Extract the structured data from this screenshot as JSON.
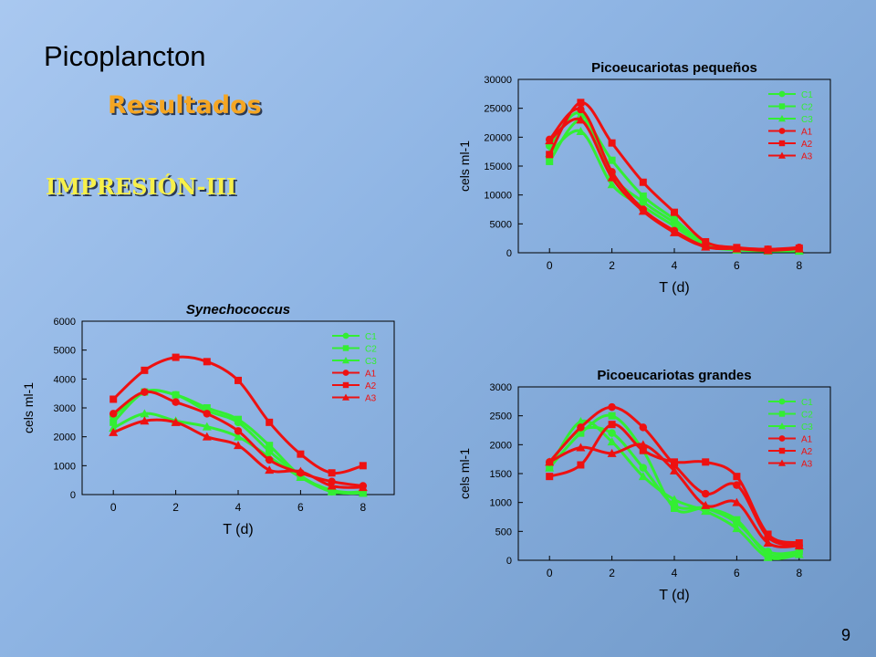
{
  "slide": {
    "title": "Picoplancton",
    "subtitle": "Resultados",
    "heading": "IMPRESIÓN-III",
    "page_number": "9"
  },
  "colors": {
    "control": "#33ee33",
    "treatment": "#ee1111"
  },
  "chart_data": [
    {
      "type": "line",
      "title": "Picoeucariotas pequeños",
      "title_style": "bold",
      "xlabel": "T (d)",
      "ylabel": "cels ml-1",
      "xlim": [
        -1,
        9
      ],
      "xticks": [
        0,
        2,
        4,
        6,
        8
      ],
      "ylim": [
        0,
        30000
      ],
      "yticks": [
        0,
        5000,
        10000,
        15000,
        20000,
        25000,
        30000
      ],
      "legend_position": "top-right",
      "x": [
        0,
        1,
        2,
        3,
        4,
        5,
        6,
        7,
        8
      ],
      "series": [
        {
          "name": "C1",
          "marker": "circle",
          "color": "#33ee33",
          "values": [
            18500,
            24200,
            13500,
            8800,
            5200,
            1300,
            600,
            400,
            400
          ]
        },
        {
          "name": "C2",
          "marker": "square",
          "color": "#33ee33",
          "values": [
            15800,
            23000,
            16000,
            9800,
            5800,
            1500,
            700,
            400,
            400
          ]
        },
        {
          "name": "C3",
          "marker": "triangle",
          "color": "#33ee33",
          "values": [
            17200,
            21000,
            11800,
            8000,
            4600,
            1200,
            500,
            300,
            300
          ]
        },
        {
          "name": "A1",
          "marker": "circle",
          "color": "#ee1111",
          "values": [
            19600,
            24800,
            14000,
            7500,
            3800,
            1100,
            800,
            600,
            900
          ]
        },
        {
          "name": "A2",
          "marker": "square",
          "color": "#ee1111",
          "values": [
            17000,
            26000,
            19000,
            12200,
            7000,
            1900,
            900,
            600,
            800
          ]
        },
        {
          "name": "A3",
          "marker": "triangle",
          "color": "#ee1111",
          "values": [
            19400,
            23000,
            13000,
            7200,
            3500,
            1000,
            700,
            400,
            700
          ]
        }
      ]
    },
    {
      "type": "line",
      "title": "Synechococcus",
      "title_style": "bold-italic",
      "xlabel": "T (d)",
      "ylabel": "cels ml-1",
      "xlim": [
        -1,
        9
      ],
      "xticks": [
        0,
        2,
        4,
        6,
        8
      ],
      "ylim": [
        0,
        6000
      ],
      "yticks": [
        0,
        1000,
        2000,
        3000,
        4000,
        5000,
        6000
      ],
      "legend_position": "top-right",
      "x": [
        0,
        1,
        2,
        3,
        4,
        5,
        6,
        7,
        8
      ],
      "series": [
        {
          "name": "C1",
          "marker": "circle",
          "color": "#33ee33",
          "values": [
            2700,
            3550,
            3450,
            2900,
            2500,
            1500,
            650,
            100,
            100
          ]
        },
        {
          "name": "C2",
          "marker": "square",
          "color": "#33ee33",
          "values": [
            2500,
            3550,
            3450,
            3000,
            2600,
            1700,
            650,
            150,
            50
          ]
        },
        {
          "name": "C3",
          "marker": "triangle",
          "color": "#33ee33",
          "values": [
            2300,
            2800,
            2550,
            2350,
            2000,
            1300,
            600,
            100,
            50
          ]
        },
        {
          "name": "A1",
          "marker": "circle",
          "color": "#ee1111",
          "values": [
            2800,
            3550,
            3200,
            2800,
            2200,
            1200,
            750,
            450,
            300
          ]
        },
        {
          "name": "A2",
          "marker": "square",
          "color": "#ee1111",
          "values": [
            3300,
            4300,
            4750,
            4600,
            3950,
            2500,
            1400,
            750,
            1000
          ]
        },
        {
          "name": "A3",
          "marker": "triangle",
          "color": "#ee1111",
          "values": [
            2150,
            2550,
            2500,
            2000,
            1700,
            850,
            800,
            300,
            250
          ]
        }
      ]
    },
    {
      "type": "line",
      "title": "Picoeucariotas grandes",
      "title_style": "bold",
      "xlabel": "T (d)",
      "ylabel": "cels ml-1",
      "xlim": [
        -1,
        9
      ],
      "xticks": [
        0,
        2,
        4,
        6,
        8
      ],
      "ylim": [
        0,
        3000
      ],
      "yticks": [
        0,
        500,
        1000,
        1500,
        2000,
        2500,
        3000
      ],
      "legend_position": "top-right",
      "x": [
        0,
        1,
        2,
        3,
        4,
        5,
        6,
        7,
        8
      ],
      "series": [
        {
          "name": "C1",
          "marker": "circle",
          "color": "#33ee33",
          "values": [
            1700,
            2250,
            2200,
            1600,
            950,
            900,
            650,
            150,
            150
          ]
        },
        {
          "name": "C2",
          "marker": "square",
          "color": "#33ee33",
          "values": [
            1600,
            2200,
            2500,
            1900,
            900,
            900,
            700,
            100,
            150
          ]
        },
        {
          "name": "C3",
          "marker": "triangle",
          "color": "#33ee33",
          "values": [
            1600,
            2400,
            2050,
            1450,
            1050,
            850,
            550,
            50,
            100
          ]
        },
        {
          "name": "A1",
          "marker": "circle",
          "color": "#ee1111",
          "values": [
            1700,
            2300,
            2650,
            2300,
            1650,
            1150,
            1300,
            400,
            250
          ]
        },
        {
          "name": "A2",
          "marker": "square",
          "color": "#ee1111",
          "values": [
            1450,
            1650,
            2350,
            1900,
            1700,
            1700,
            1450,
            450,
            300
          ]
        },
        {
          "name": "A3",
          "marker": "triangle",
          "color": "#ee1111",
          "values": [
            1700,
            1950,
            1850,
            2000,
            1550,
            950,
            1000,
            300,
            250
          ]
        }
      ]
    }
  ]
}
